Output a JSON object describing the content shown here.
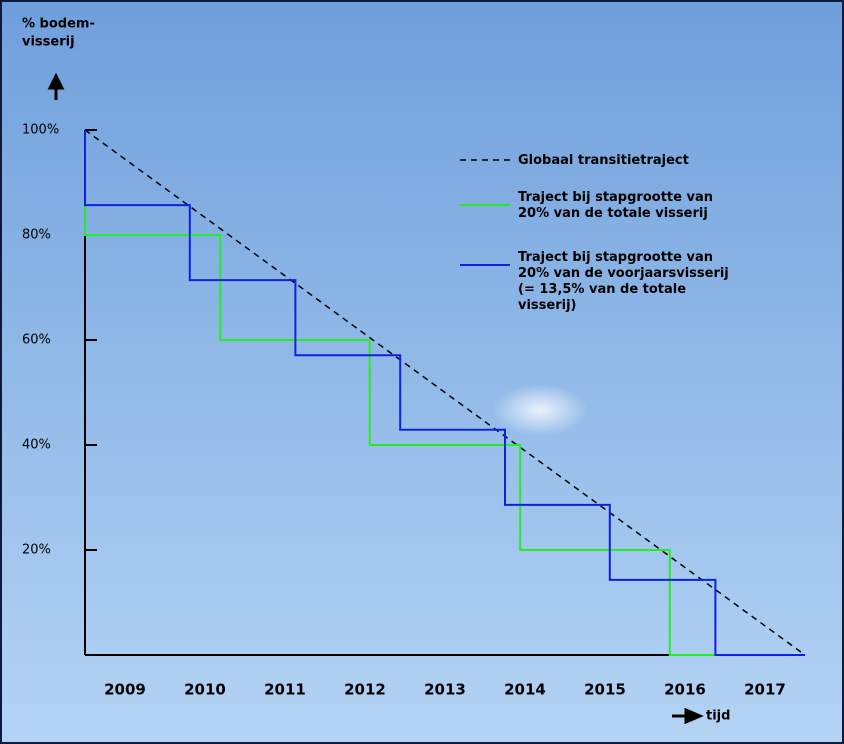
{
  "chart_data": {
    "type": "line",
    "ylabel": [
      "% bodem-",
      "visserij"
    ],
    "xlabel": "tijd",
    "categories": [
      "2009",
      "2010",
      "2011",
      "2012",
      "2013",
      "2014",
      "2015",
      "2016",
      "2017"
    ],
    "xlim": [
      2009,
      2018
    ],
    "ylim": [
      0,
      100
    ],
    "yticks": [
      {
        "value": 20,
        "label": "20%"
      },
      {
        "value": 40,
        "label": "40%"
      },
      {
        "value": 60,
        "label": "60%"
      },
      {
        "value": 80,
        "label": "80%"
      },
      {
        "value": 100,
        "label": "100%"
      }
    ],
    "series": [
      {
        "name": "Globaal transitietraject",
        "color": "#000000",
        "dashed": true,
        "x": [
          2009,
          2018
        ],
        "values": [
          100,
          0
        ]
      },
      {
        "name": "Traject bij stapgrootte van\n20% van de totale visserij",
        "color": "#22ee22",
        "dashed": false,
        "x": [
          2009,
          2009,
          2010.69,
          2010.69,
          2012.56,
          2012.56,
          2014.44,
          2014.44,
          2016.31,
          2016.31,
          2016.88
        ],
        "values": [
          100,
          80,
          80,
          60,
          60,
          40,
          40,
          20,
          20,
          0,
          0
        ]
      },
      {
        "name": "Traject bij stapgrootte van\n20% van de voorjaarsvisserij\n(= 13,5% van de totale\nvisserij)",
        "color": "#1020e0",
        "dashed": false,
        "x": [
          2009,
          2009,
          2010.31,
          2010.31,
          2011.63,
          2011.63,
          2012.94,
          2012.94,
          2014.25,
          2014.25,
          2015.56,
          2015.56,
          2016.88,
          2016.88,
          2018
        ],
        "values": [
          100,
          85.7,
          85.7,
          71.4,
          71.4,
          57.1,
          57.1,
          42.9,
          42.9,
          28.6,
          28.6,
          14.3,
          14.3,
          0,
          0
        ]
      }
    ]
  }
}
